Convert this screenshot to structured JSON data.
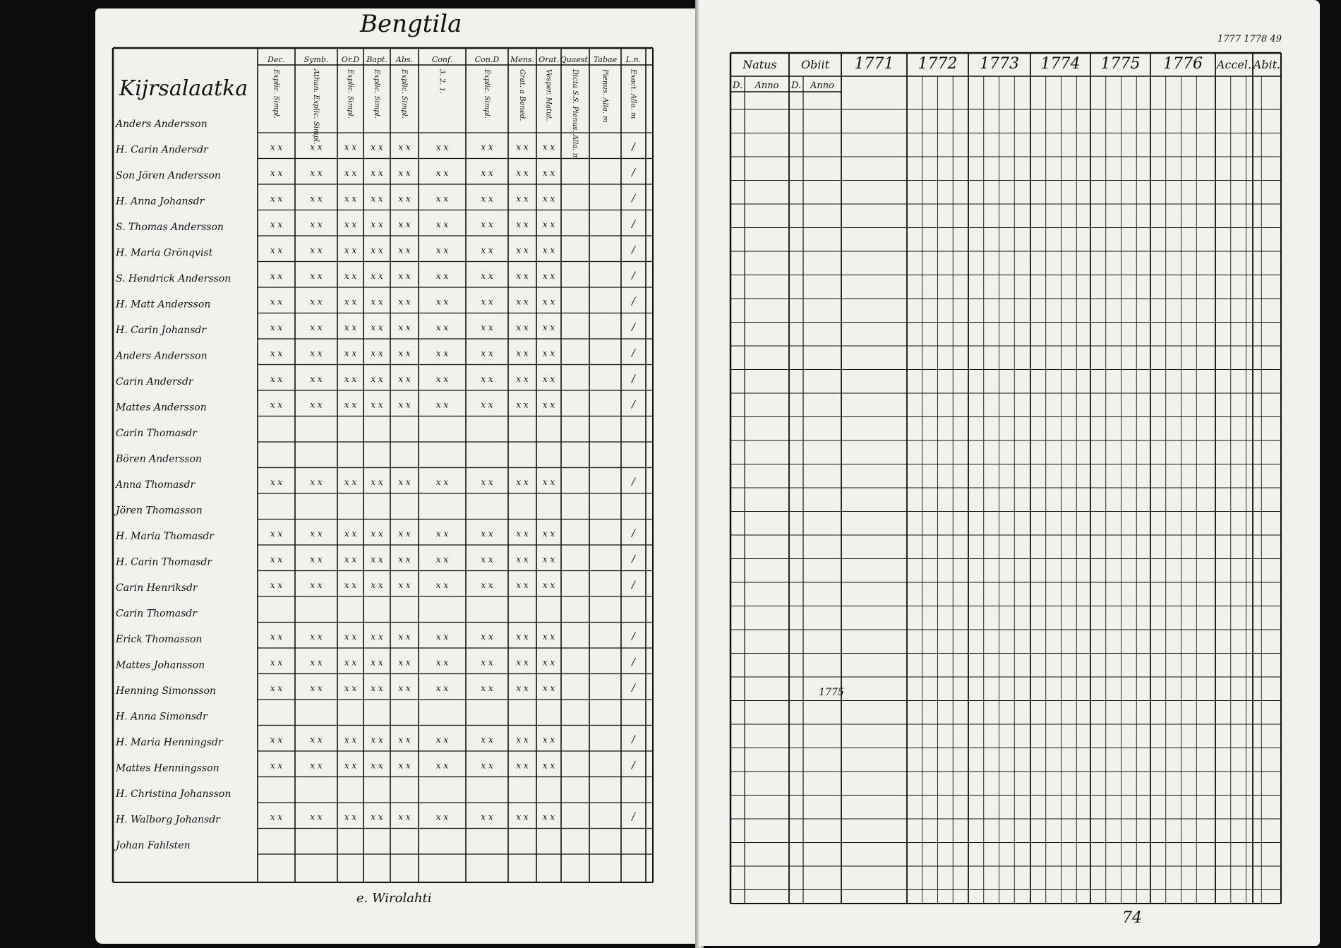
{
  "document": {
    "title": "Bengtila",
    "left_page": {
      "side_heading": "Kijrsalaatka",
      "columns": [
        {
          "head": "Dec.",
          "sub": "Explic. Simpl."
        },
        {
          "head": "Symb.",
          "sub": "Athan. Explic. Simpl."
        },
        {
          "head": "Or.D",
          "sub": "Explic. Simpl."
        },
        {
          "head": "Bapt.",
          "sub": "Explic. Simpl."
        },
        {
          "head": "Abs.",
          "sub": "Explic. Simpl."
        },
        {
          "head": "Conf.",
          "sub": "3. 2. 1."
        },
        {
          "head": "Con.D",
          "sub": "Explic. Simpl."
        },
        {
          "head": "Mens.",
          "sub": "Grat. a Bened."
        },
        {
          "head": "Orat.",
          "sub": "Vesper. Matut."
        },
        {
          "head": "Quaest.",
          "sub": "Dicta S.S. Pienus. Alla. m"
        },
        {
          "head": "Tabae",
          "sub": "Pienus. Alla. m"
        },
        {
          "head": "L.n.",
          "sub": "Exact. Alla. m"
        }
      ],
      "names": [
        "Anders Andersson",
        "H. Carin Andersdr",
        "Son Jören Andersson",
        "H. Anna Johansdr",
        "S. Thomas Andersson",
        "H. Maria Grönqvist",
        "S. Hendrick Andersson",
        "H. Matt Andersson",
        "H. Carin Johansdr",
        "Anders Andersson",
        "Carin Andersdr",
        "Mattes Andersson",
        "Carin Thomasdr",
        "Bören Andersson",
        "Anna Thomasdr",
        "Jören Thomasson",
        "H. Maria Thomasdr",
        "H. Carin Thomasdr",
        "Carin Henriksdr",
        "Carin Thomasdr",
        "Erick Thomasson",
        "Mattes Johansson",
        "Henning Simonsson",
        "H. Anna Simonsdr",
        "H. Maria Henningsdr",
        "Mattes Henningsson",
        "H. Christina Johansson",
        "H. Walborg Johansdr",
        "Johan Fahlsten"
      ],
      "bottom_note": "e. Wirolahti"
    },
    "right_page": {
      "columns": [
        {
          "head": "Natus",
          "sub": [
            "D.",
            "Anno"
          ]
        },
        {
          "head": "Obiit",
          "sub": [
            "D.",
            "Anno"
          ]
        },
        {
          "head": "1771",
          "sub": []
        },
        {
          "head": "1772",
          "sub": []
        },
        {
          "head": "1773",
          "sub": []
        },
        {
          "head": "1774",
          "sub": []
        },
        {
          "head": "1775",
          "sub": []
        },
        {
          "head": "1776",
          "sub": []
        },
        {
          "head": "Accel.",
          "sub": []
        },
        {
          "head": "Abit.",
          "sub": []
        }
      ],
      "corner_note": "1777 1778 49",
      "margin_year": "1775",
      "page_number": "74"
    }
  },
  "colors": {
    "ink": "#111111",
    "paper": "#f1f1ee",
    "background": "#0c0c0c"
  }
}
